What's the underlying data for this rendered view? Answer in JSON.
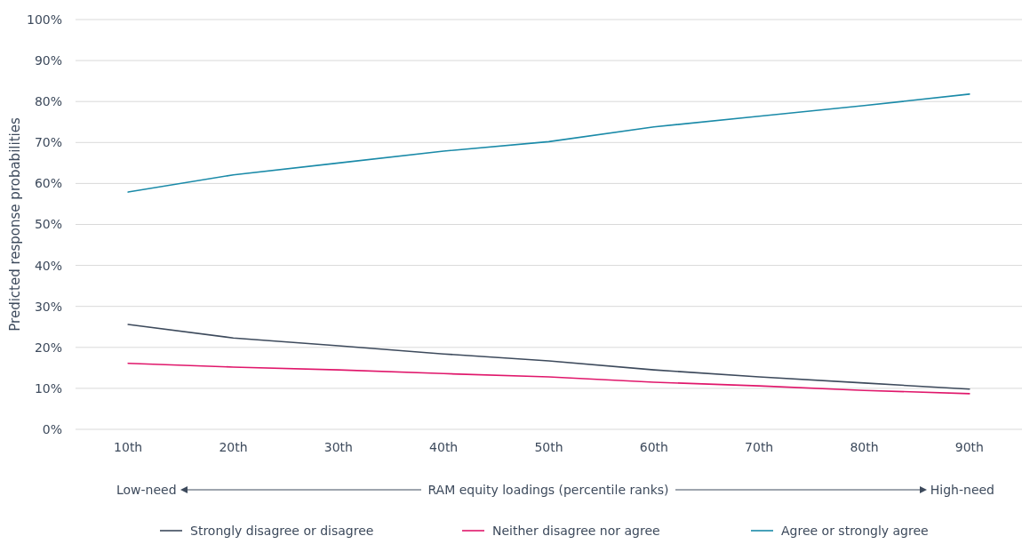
{
  "chart_data": {
    "type": "line",
    "categories": [
      "10th",
      "20th",
      "30th",
      "40th",
      "50th",
      "60th",
      "70th",
      "80th",
      "90th"
    ],
    "xlabel": "RAM equity loadings (percentile ranks)",
    "ylabel": "Predicted response probabilities",
    "annotations": [
      "Low-need",
      "High-need"
    ],
    "ylim": [
      0,
      1
    ],
    "yticks": [
      {
        "value": 0,
        "label": "0%"
      },
      {
        "value": 0.1,
        "label": "10%"
      },
      {
        "value": 0.2,
        "label": "20%"
      },
      {
        "value": 0.3,
        "label": "30%"
      },
      {
        "value": 0.4,
        "label": "40%"
      },
      {
        "value": 0.5,
        "label": "50%"
      },
      {
        "value": 0.6,
        "label": "60%"
      },
      {
        "value": 0.7,
        "label": "70%"
      },
      {
        "value": 0.8,
        "label": "80%"
      },
      {
        "value": 0.9,
        "label": "90%"
      },
      {
        "value": 1,
        "label": "100%"
      }
    ],
    "grid": "y",
    "legend": "bottom",
    "marker": "none",
    "series": [
      {
        "name": "Strongly disagree or disagree",
        "color": "#3d4a5c",
        "values": [
          0.256,
          0.223,
          0.204,
          0.184,
          0.167,
          0.145,
          0.128,
          0.113,
          0.098
        ]
      },
      {
        "name": "Neither disagree nor agree",
        "color": "#e0176b",
        "values": [
          0.161,
          0.152,
          0.145,
          0.136,
          0.128,
          0.115,
          0.106,
          0.095,
          0.087
        ]
      },
      {
        "name": "Agree or strongly agree",
        "color": "#1a8aa8",
        "values": [
          0.579,
          0.621,
          0.65,
          0.679,
          0.702,
          0.738,
          0.764,
          0.79,
          0.818
        ]
      }
    ]
  }
}
